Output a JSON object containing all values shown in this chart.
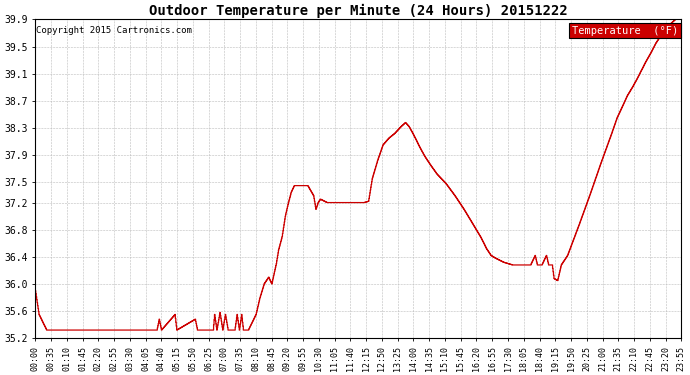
{
  "title": "Outdoor Temperature per Minute (24 Hours) 20151222",
  "copyright": "Copyright 2015 Cartronics.com",
  "legend_label": "Temperature  (°F)",
  "line_color": "#cc0000",
  "legend_bg": "#cc0000",
  "legend_text_color": "#ffffff",
  "background_color": "#ffffff",
  "grid_color": "#bbbbbb",
  "ylim": [
    35.2,
    39.9
  ],
  "yticks": [
    35.2,
    35.6,
    36.0,
    36.4,
    36.8,
    37.2,
    37.5,
    37.9,
    38.3,
    38.7,
    39.1,
    39.5,
    39.9
  ],
  "x_labels": [
    "00:00",
    "00:35",
    "01:10",
    "01:45",
    "02:20",
    "02:55",
    "03:30",
    "04:05",
    "04:40",
    "05:15",
    "05:50",
    "06:25",
    "07:00",
    "07:35",
    "08:10",
    "08:45",
    "09:20",
    "09:55",
    "10:30",
    "11:05",
    "11:40",
    "12:15",
    "12:50",
    "13:25",
    "14:00",
    "14:35",
    "15:10",
    "15:45",
    "16:20",
    "16:55",
    "17:30",
    "18:05",
    "18:40",
    "19:15",
    "19:50",
    "20:25",
    "21:00",
    "21:35",
    "22:10",
    "22:45",
    "23:20",
    "23:55"
  ],
  "keypoints": [
    [
      0,
      35.9
    ],
    [
      8,
      35.55
    ],
    [
      25,
      35.32
    ],
    [
      270,
      35.32
    ],
    [
      275,
      35.48
    ],
    [
      280,
      35.32
    ],
    [
      310,
      35.55
    ],
    [
      314,
      35.32
    ],
    [
      355,
      35.48
    ],
    [
      360,
      35.32
    ],
    [
      395,
      35.32
    ],
    [
      398,
      35.55
    ],
    [
      403,
      35.32
    ],
    [
      410,
      35.58
    ],
    [
      416,
      35.32
    ],
    [
      422,
      35.55
    ],
    [
      428,
      35.32
    ],
    [
      443,
      35.32
    ],
    [
      448,
      35.55
    ],
    [
      453,
      35.32
    ],
    [
      458,
      35.55
    ],
    [
      462,
      35.32
    ],
    [
      468,
      35.32
    ],
    [
      473,
      35.32
    ],
    [
      490,
      35.55
    ],
    [
      498,
      35.78
    ],
    [
      508,
      36.0
    ],
    [
      518,
      36.1
    ],
    [
      525,
      36.0
    ],
    [
      530,
      36.15
    ],
    [
      535,
      36.3
    ],
    [
      540,
      36.5
    ],
    [
      548,
      36.7
    ],
    [
      555,
      37.0
    ],
    [
      562,
      37.2
    ],
    [
      568,
      37.35
    ],
    [
      575,
      37.45
    ],
    [
      585,
      37.45
    ],
    [
      605,
      37.45
    ],
    [
      618,
      37.3
    ],
    [
      623,
      37.1
    ],
    [
      628,
      37.2
    ],
    [
      633,
      37.25
    ],
    [
      648,
      37.2
    ],
    [
      660,
      37.2
    ],
    [
      680,
      37.2
    ],
    [
      700,
      37.2
    ],
    [
      720,
      37.2
    ],
    [
      730,
      37.2
    ],
    [
      740,
      37.22
    ],
    [
      748,
      37.55
    ],
    [
      760,
      37.82
    ],
    [
      772,
      38.05
    ],
    [
      785,
      38.15
    ],
    [
      798,
      38.22
    ],
    [
      812,
      38.32
    ],
    [
      822,
      38.38
    ],
    [
      830,
      38.32
    ],
    [
      840,
      38.2
    ],
    [
      855,
      38.0
    ],
    [
      865,
      37.88
    ],
    [
      878,
      37.75
    ],
    [
      892,
      37.62
    ],
    [
      912,
      37.48
    ],
    [
      932,
      37.3
    ],
    [
      952,
      37.1
    ],
    [
      972,
      36.88
    ],
    [
      990,
      36.68
    ],
    [
      1002,
      36.52
    ],
    [
      1012,
      36.42
    ],
    [
      1022,
      36.38
    ],
    [
      1040,
      36.32
    ],
    [
      1060,
      36.28
    ],
    [
      1100,
      36.28
    ],
    [
      1110,
      36.42
    ],
    [
      1115,
      36.28
    ],
    [
      1125,
      36.28
    ],
    [
      1135,
      36.42
    ],
    [
      1140,
      36.28
    ],
    [
      1148,
      36.28
    ],
    [
      1152,
      36.08
    ],
    [
      1160,
      36.05
    ],
    [
      1168,
      36.28
    ],
    [
      1182,
      36.42
    ],
    [
      1195,
      36.65
    ],
    [
      1208,
      36.88
    ],
    [
      1220,
      37.1
    ],
    [
      1232,
      37.32
    ],
    [
      1244,
      37.55
    ],
    [
      1256,
      37.78
    ],
    [
      1268,
      38.0
    ],
    [
      1280,
      38.22
    ],
    [
      1292,
      38.45
    ],
    [
      1304,
      38.62
    ],
    [
      1315,
      38.78
    ],
    [
      1326,
      38.9
    ],
    [
      1336,
      39.02
    ],
    [
      1346,
      39.15
    ],
    [
      1356,
      39.28
    ],
    [
      1368,
      39.42
    ],
    [
      1378,
      39.55
    ],
    [
      1388,
      39.65
    ],
    [
      1398,
      39.75
    ],
    [
      1408,
      39.82
    ],
    [
      1418,
      39.88
    ],
    [
      1435,
      39.98
    ]
  ],
  "total_minutes": 1435
}
